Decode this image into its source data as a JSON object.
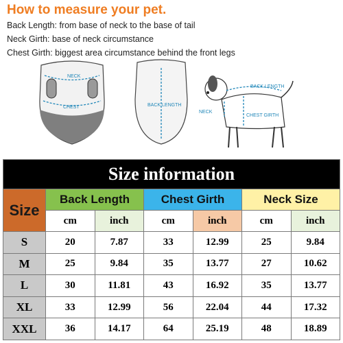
{
  "heading": "How to measure your pet.",
  "definitions": [
    "Back Length: from base of neck to the base of tail",
    "Neck Girth: base of neck circumstance",
    "Chest Girth: biggest area circumstance behind the front legs"
  ],
  "illustration_labels": {
    "front_neck": "NECK",
    "front_chest": "CHEST",
    "back_length": "BACK LENGTH",
    "dog_back_length": "BACK LENGTH",
    "dog_neck": "NECK",
    "dog_chest_girth": "CHEST GIRTH"
  },
  "table": {
    "title": "Size information",
    "size_header": "Size",
    "groups": [
      "Back Length",
      "Chest Girth",
      "Neck Size"
    ],
    "units": [
      "cm",
      "inch",
      "cm",
      "inch",
      "cm",
      "inch"
    ],
    "rows": [
      {
        "size": "S",
        "values": [
          "20",
          "7.87",
          "33",
          "12.99",
          "25",
          "9.84"
        ]
      },
      {
        "size": "M",
        "values": [
          "25",
          "9.84",
          "35",
          "13.77",
          "27",
          "10.62"
        ]
      },
      {
        "size": "L",
        "values": [
          "30",
          "11.81",
          "43",
          "16.92",
          "35",
          "13.77"
        ]
      },
      {
        "size": "XL",
        "values": [
          "33",
          "12.99",
          "56",
          "22.04",
          "44",
          "17.32"
        ]
      },
      {
        "size": "XXL",
        "values": [
          "36",
          "14.17",
          "64",
          "25.19",
          "48",
          "18.89"
        ]
      }
    ]
  },
  "colors": {
    "heading": "#ef7d22",
    "size_header": "#cc6a2a",
    "back_length": "#86c14d",
    "chest_girth": "#3bb4ea",
    "neck_size": "#fff1a6",
    "measure_line": "#1f86b8"
  }
}
